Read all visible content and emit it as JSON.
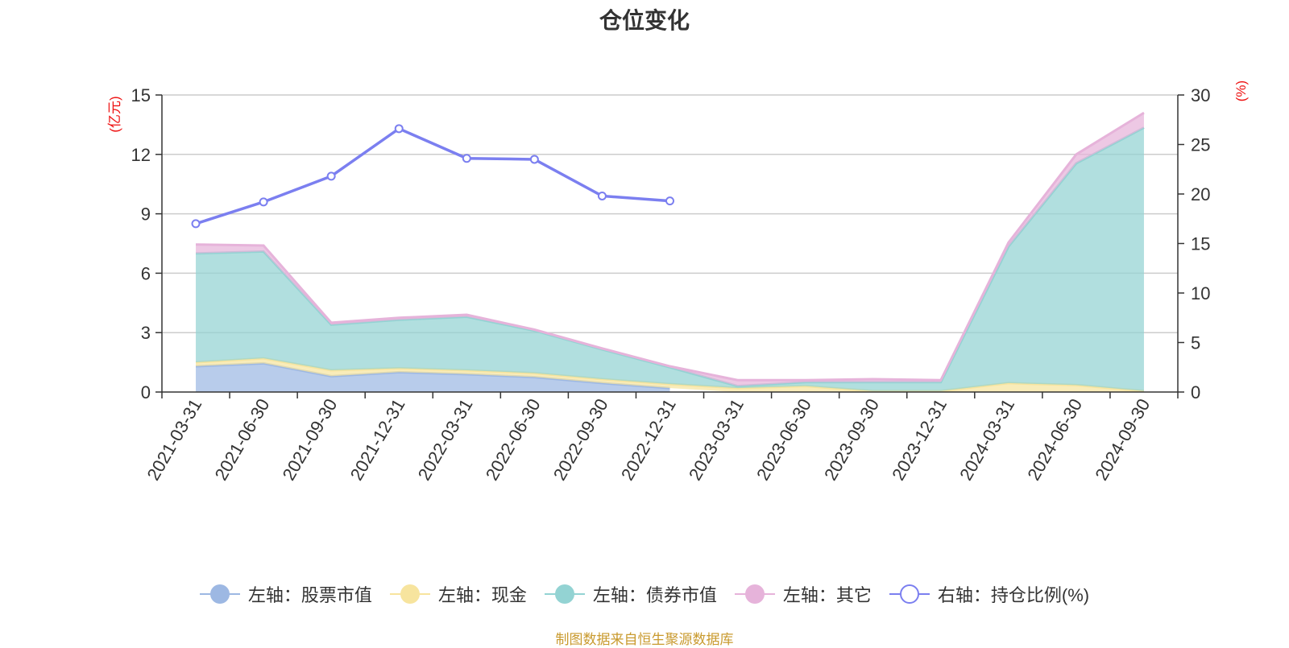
{
  "chart_data": {
    "type": "area",
    "title": "仓位变化",
    "y_left_label": "(亿元)",
    "y_right_label": "(%)",
    "y_left_range": [
      0,
      15
    ],
    "y_right_range": [
      0,
      30
    ],
    "y_left_ticks": [
      "0",
      "3",
      "6",
      "9",
      "12",
      "15"
    ],
    "y_right_ticks": [
      "0",
      "5",
      "10",
      "15",
      "20",
      "25",
      "30"
    ],
    "categories": [
      "2021-03-31",
      "2021-06-30",
      "2021-09-30",
      "2021-12-31",
      "2022-03-31",
      "2022-06-30",
      "2022-09-30",
      "2022-12-31",
      "2023-03-31",
      "2023-06-30",
      "2023-09-30",
      "2023-12-31",
      "2024-03-31",
      "2024-06-30",
      "2024-09-30"
    ],
    "stacked_series": [
      {
        "name": "左轴：股票市值",
        "color": "#9db8e3",
        "values": [
          1.3,
          1.45,
          0.8,
          1.0,
          0.9,
          0.75,
          0.45,
          0.2,
          null,
          null,
          null,
          null,
          null,
          null,
          null
        ]
      },
      {
        "name": "左轴：现金",
        "color": "#f7e49e",
        "values": [
          0.2,
          0.25,
          0.3,
          0.2,
          0.2,
          0.2,
          0.2,
          0.2,
          0.2,
          0.3,
          0.05,
          0.05,
          0.45,
          0.35,
          0.05
        ]
      },
      {
        "name": "左轴：债券市值",
        "color": "#93d3d3",
        "values": [
          5.5,
          5.4,
          2.3,
          2.45,
          2.7,
          2.15,
          1.5,
          0.85,
          0.1,
          0.2,
          0.45,
          0.45,
          6.9,
          11.2,
          13.3
        ]
      },
      {
        "name": "左轴：其它",
        "color": "#e6b3da",
        "values": [
          0.45,
          0.3,
          0.1,
          0.1,
          0.1,
          0.05,
          0.05,
          0.05,
          0.3,
          0.1,
          0.15,
          0.1,
          0.2,
          0.45,
          0.75
        ]
      }
    ],
    "line_series": {
      "name": "右轴：持仓比例(%)",
      "color": "#7b7ff0",
      "values": [
        17.0,
        19.2,
        21.8,
        26.6,
        23.6,
        23.5,
        19.8,
        19.3,
        null,
        null,
        null,
        null,
        null,
        null,
        null
      ]
    },
    "source_note": "制图数据来自恒生聚源数据库"
  }
}
